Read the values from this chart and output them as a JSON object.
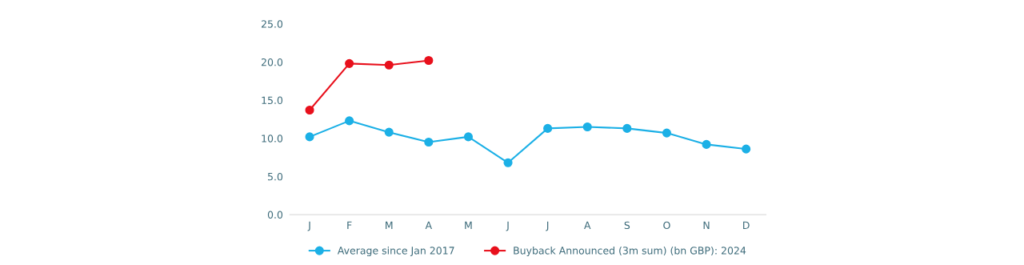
{
  "chart_data": {
    "type": "line",
    "categories": [
      "J",
      "F",
      "M",
      "A",
      "M",
      "J",
      "J",
      "A",
      "S",
      "O",
      "N",
      "D"
    ],
    "series": [
      {
        "name": "Average since Jan 2017",
        "color": "#1cb0e6",
        "values": [
          10.2,
          12.3,
          10.8,
          9.5,
          10.2,
          6.8,
          11.3,
          11.5,
          11.3,
          10.7,
          9.2,
          8.6
        ]
      },
      {
        "name": "Buyback Announced (3m sum) (bn GBP): 2024",
        "color": "#e8101c",
        "values": [
          13.7,
          19.8,
          19.6,
          20.2,
          null,
          null,
          null,
          null,
          null,
          null,
          null,
          null
        ]
      }
    ],
    "ylim": [
      0,
      25
    ],
    "yticks": [
      {
        "value": 0,
        "label": "0.0"
      },
      {
        "value": 5,
        "label": "5.0"
      },
      {
        "value": 10,
        "label": "10.0"
      },
      {
        "value": 15,
        "label": "15.0"
      },
      {
        "value": 20,
        "label": "20.0"
      },
      {
        "value": 25,
        "label": "25.0"
      }
    ],
    "grid": false,
    "legend": "bottom",
    "marker": "circle",
    "line_style": "solid"
  }
}
